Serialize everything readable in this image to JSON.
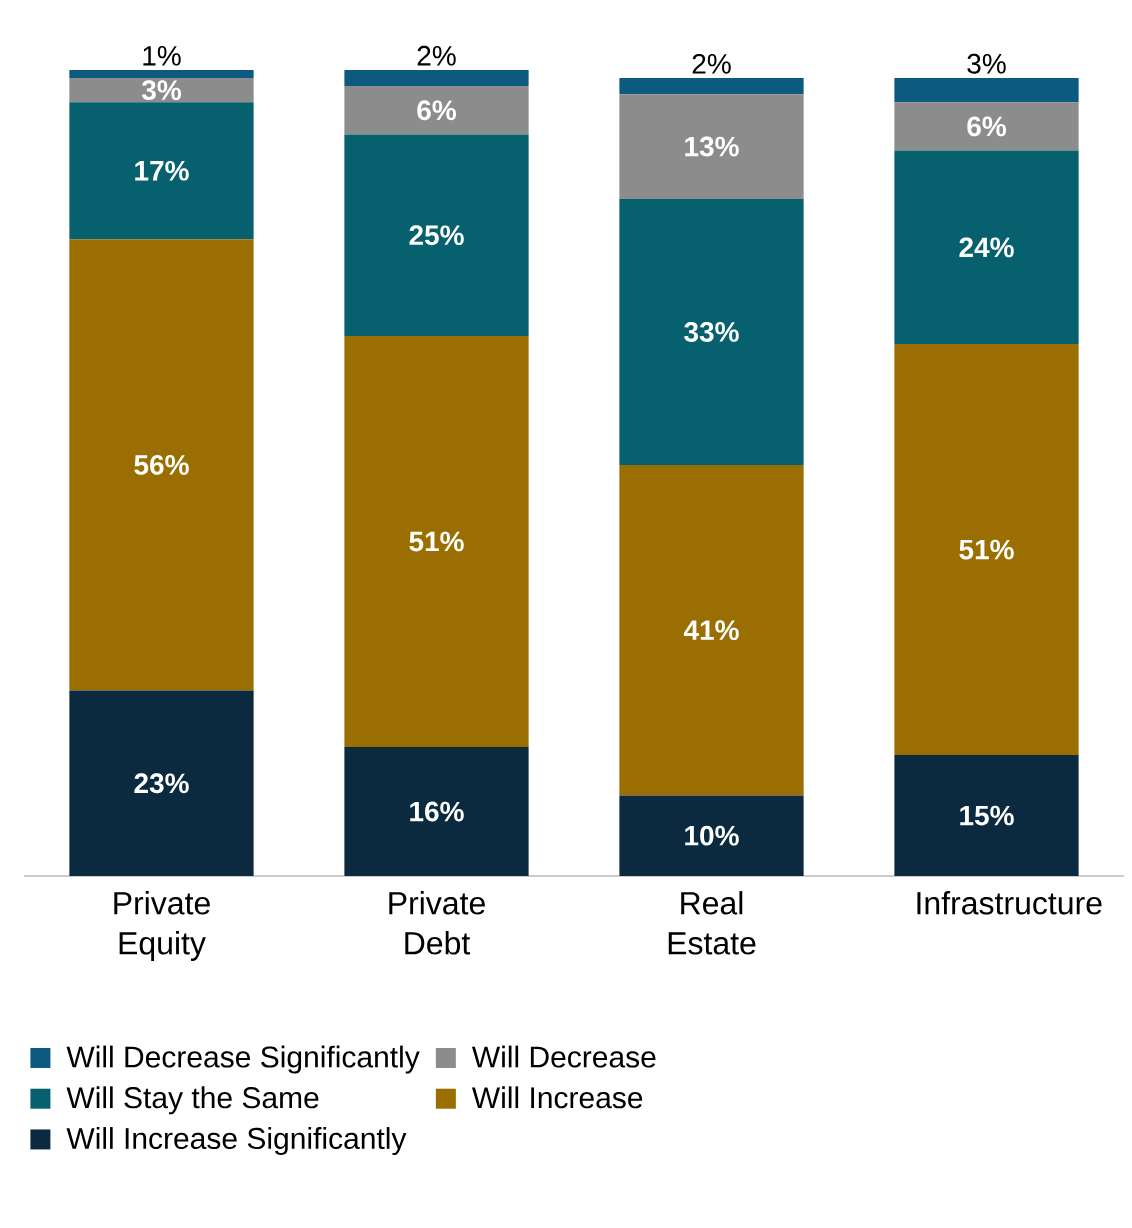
{
  "chart_data": {
    "type": "bar",
    "stacked": true,
    "categories": [
      "Private Equity",
      "Private Debt",
      "Real Estate",
      "Infrastructure"
    ],
    "series": [
      {
        "name": "Will Increase Significantly",
        "color": "#0b2a3f",
        "values": [
          23,
          16,
          10,
          15
        ],
        "value_labels": [
          "23%",
          "16%",
          "10%",
          "15%"
        ]
      },
      {
        "name": "Will Increase",
        "color": "#9a6e00",
        "values": [
          56,
          51,
          41,
          51
        ],
        "value_labels": [
          "56%",
          "51%",
          "41%",
          "51%"
        ]
      },
      {
        "name": "Will Stay the Same",
        "color": "#07606e",
        "values": [
          17,
          25,
          33,
          24
        ],
        "value_labels": [
          "17%",
          "25%",
          "33%",
          "24%"
        ]
      },
      {
        "name": "Will Decrease",
        "color": "#8c8c8c",
        "values": [
          3,
          6,
          13,
          6
        ],
        "value_labels": [
          "3%",
          "6%",
          "13%",
          "6%"
        ]
      },
      {
        "name": "Will Decrease Significantly",
        "color": "#0d5a80",
        "values": [
          1,
          2,
          2,
          3
        ],
        "value_labels": [
          "1%",
          "2%",
          "2%",
          "3%"
        ]
      }
    ],
    "tick_labels": "x",
    "legend": "bottom"
  }
}
